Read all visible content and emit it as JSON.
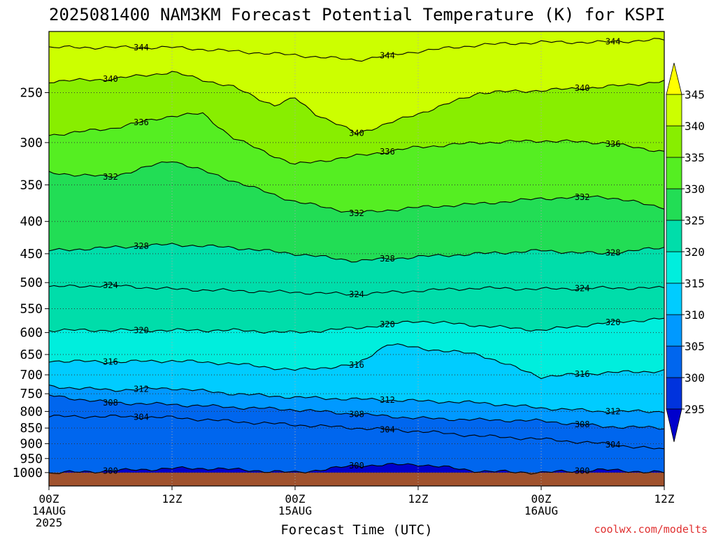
{
  "chart_data": {
    "type": "heatmap",
    "subtype": "filled contour, time-height cross section",
    "title": "2025081400 NAM3KM Forecast Potential Temperature (K) for KSPI",
    "xlabel": "Forecast Time (UTC)",
    "ylabel": "",
    "credit": "coolwx.com/modelts",
    "y_axis": {
      "quantity": "pressure (hPa)",
      "scale": "log",
      "inverted": true,
      "range": [
        1050,
        200
      ],
      "ticks": [
        "250",
        "300",
        "350",
        "400",
        "450",
        "500",
        "550",
        "600",
        "650",
        "700",
        "750",
        "800",
        "850",
        "900",
        "950",
        "1000"
      ]
    },
    "x_axis": {
      "range_hours": [
        0,
        60
      ],
      "ticks": [
        {
          "hour": 0,
          "label": "00Z",
          "date": "14AUG",
          "year": "2025"
        },
        {
          "hour": 12,
          "label": "12Z",
          "date": "",
          "year": ""
        },
        {
          "hour": 24,
          "label": "00Z",
          "date": "15AUG",
          "year": ""
        },
        {
          "hour": 36,
          "label": "12Z",
          "date": "",
          "year": ""
        },
        {
          "hour": 48,
          "label": "00Z",
          "date": "16AUG",
          "year": ""
        },
        {
          "hour": 60,
          "label": "12Z",
          "date": "",
          "year": ""
        }
      ]
    },
    "grid": true,
    "ground": {
      "pressure_from": 1000,
      "color": "#a0522d"
    },
    "colorbar": {
      "position": "right",
      "labels": [
        "345",
        "340",
        "335",
        "330",
        "325",
        "320",
        "315",
        "310",
        "305",
        "300",
        "295"
      ],
      "levels": [
        295,
        300,
        305,
        310,
        315,
        320,
        325,
        330,
        335,
        340,
        345
      ],
      "colors": [
        "#0000cc",
        "#0033dd",
        "#0066ee",
        "#0099ff",
        "#00ccff",
        "#00eedd",
        "#00ddaa",
        "#22dd55",
        "#55ee22",
        "#88ee00",
        "#ccff00",
        "#ffff00"
      ]
    },
    "contour_interval": 4,
    "series": [
      {
        "level": 300,
        "label": "300",
        "hours": [
          0,
          12,
          16,
          24,
          30,
          36,
          42,
          48,
          54,
          60
        ],
        "pressure": [
          1002,
          985,
          985,
          1000,
          975,
          970,
          995,
          1000,
          990,
          1000
        ]
      },
      {
        "level": 304,
        "label": "304",
        "hours": [
          0,
          6,
          12,
          18,
          24,
          30,
          36,
          42,
          48,
          54,
          60
        ],
        "pressure": [
          815,
          815,
          818,
          830,
          840,
          850,
          860,
          875,
          885,
          900,
          920
        ]
      },
      {
        "level": 308,
        "label": "308",
        "hours": [
          0,
          6,
          12,
          18,
          24,
          30,
          36,
          42,
          48,
          54,
          60
        ],
        "pressure": [
          755,
          775,
          780,
          788,
          795,
          808,
          820,
          825,
          828,
          845,
          850
        ]
      },
      {
        "level": 312,
        "label": "312",
        "hours": [
          0,
          6,
          12,
          18,
          24,
          30,
          36,
          42,
          48,
          54,
          60
        ],
        "pressure": [
          730,
          740,
          735,
          750,
          760,
          765,
          770,
          775,
          790,
          800,
          800
        ]
      },
      {
        "level": 316,
        "label": "316",
        "hours": [
          0,
          6,
          12,
          18,
          24,
          30,
          33,
          36,
          42,
          48,
          54,
          60
        ],
        "pressure": [
          665,
          668,
          665,
          672,
          688,
          675,
          625,
          635,
          650,
          705,
          695,
          690
        ]
      },
      {
        "level": 320,
        "label": "320",
        "hours": [
          0,
          6,
          12,
          18,
          24,
          30,
          36,
          42,
          48,
          54,
          60
        ],
        "pressure": [
          595,
          595,
          595,
          595,
          600,
          590,
          575,
          585,
          595,
          580,
          570
        ]
      },
      {
        "level": 324,
        "label": "324",
        "hours": [
          0,
          6,
          12,
          18,
          24,
          30,
          36,
          42,
          48,
          54,
          60
        ],
        "pressure": [
          508,
          505,
          512,
          515,
          518,
          522,
          515,
          510,
          512,
          510,
          510
        ]
      },
      {
        "level": 328,
        "label": "328",
        "hours": [
          0,
          6,
          12,
          18,
          24,
          30,
          36,
          42,
          48,
          54,
          60
        ],
        "pressure": [
          445,
          440,
          435,
          440,
          450,
          462,
          455,
          450,
          445,
          450,
          440
        ]
      },
      {
        "level": 332,
        "label": "332",
        "hours": [
          0,
          6,
          12,
          18,
          24,
          30,
          36,
          42,
          48,
          54,
          60
        ],
        "pressure": [
          335,
          340,
          320,
          345,
          372,
          388,
          380,
          375,
          368,
          365,
          380
        ]
      },
      {
        "level": 336,
        "label": "336",
        "hours": [
          0,
          6,
          12,
          15,
          18,
          24,
          30,
          36,
          42,
          48,
          54,
          60
        ],
        "pressure": [
          292,
          285,
          272,
          270,
          295,
          325,
          315,
          305,
          300,
          298,
          300,
          310
        ]
      },
      {
        "level": 340,
        "label": "340",
        "hours": [
          0,
          6,
          12,
          18,
          22,
          24,
          26,
          30,
          36,
          42,
          48,
          54,
          60
        ],
        "pressure": [
          240,
          238,
          232,
          245,
          262,
          255,
          270,
          290,
          270,
          250,
          248,
          245,
          240
        ]
      },
      {
        "level": 344,
        "label": "344",
        "hours": [
          0,
          6,
          12,
          18,
          24,
          30,
          36,
          42,
          48,
          54,
          60
        ],
        "pressure": [
          212,
          212,
          212,
          215,
          218,
          222,
          215,
          210,
          208,
          208,
          206
        ]
      }
    ]
  }
}
